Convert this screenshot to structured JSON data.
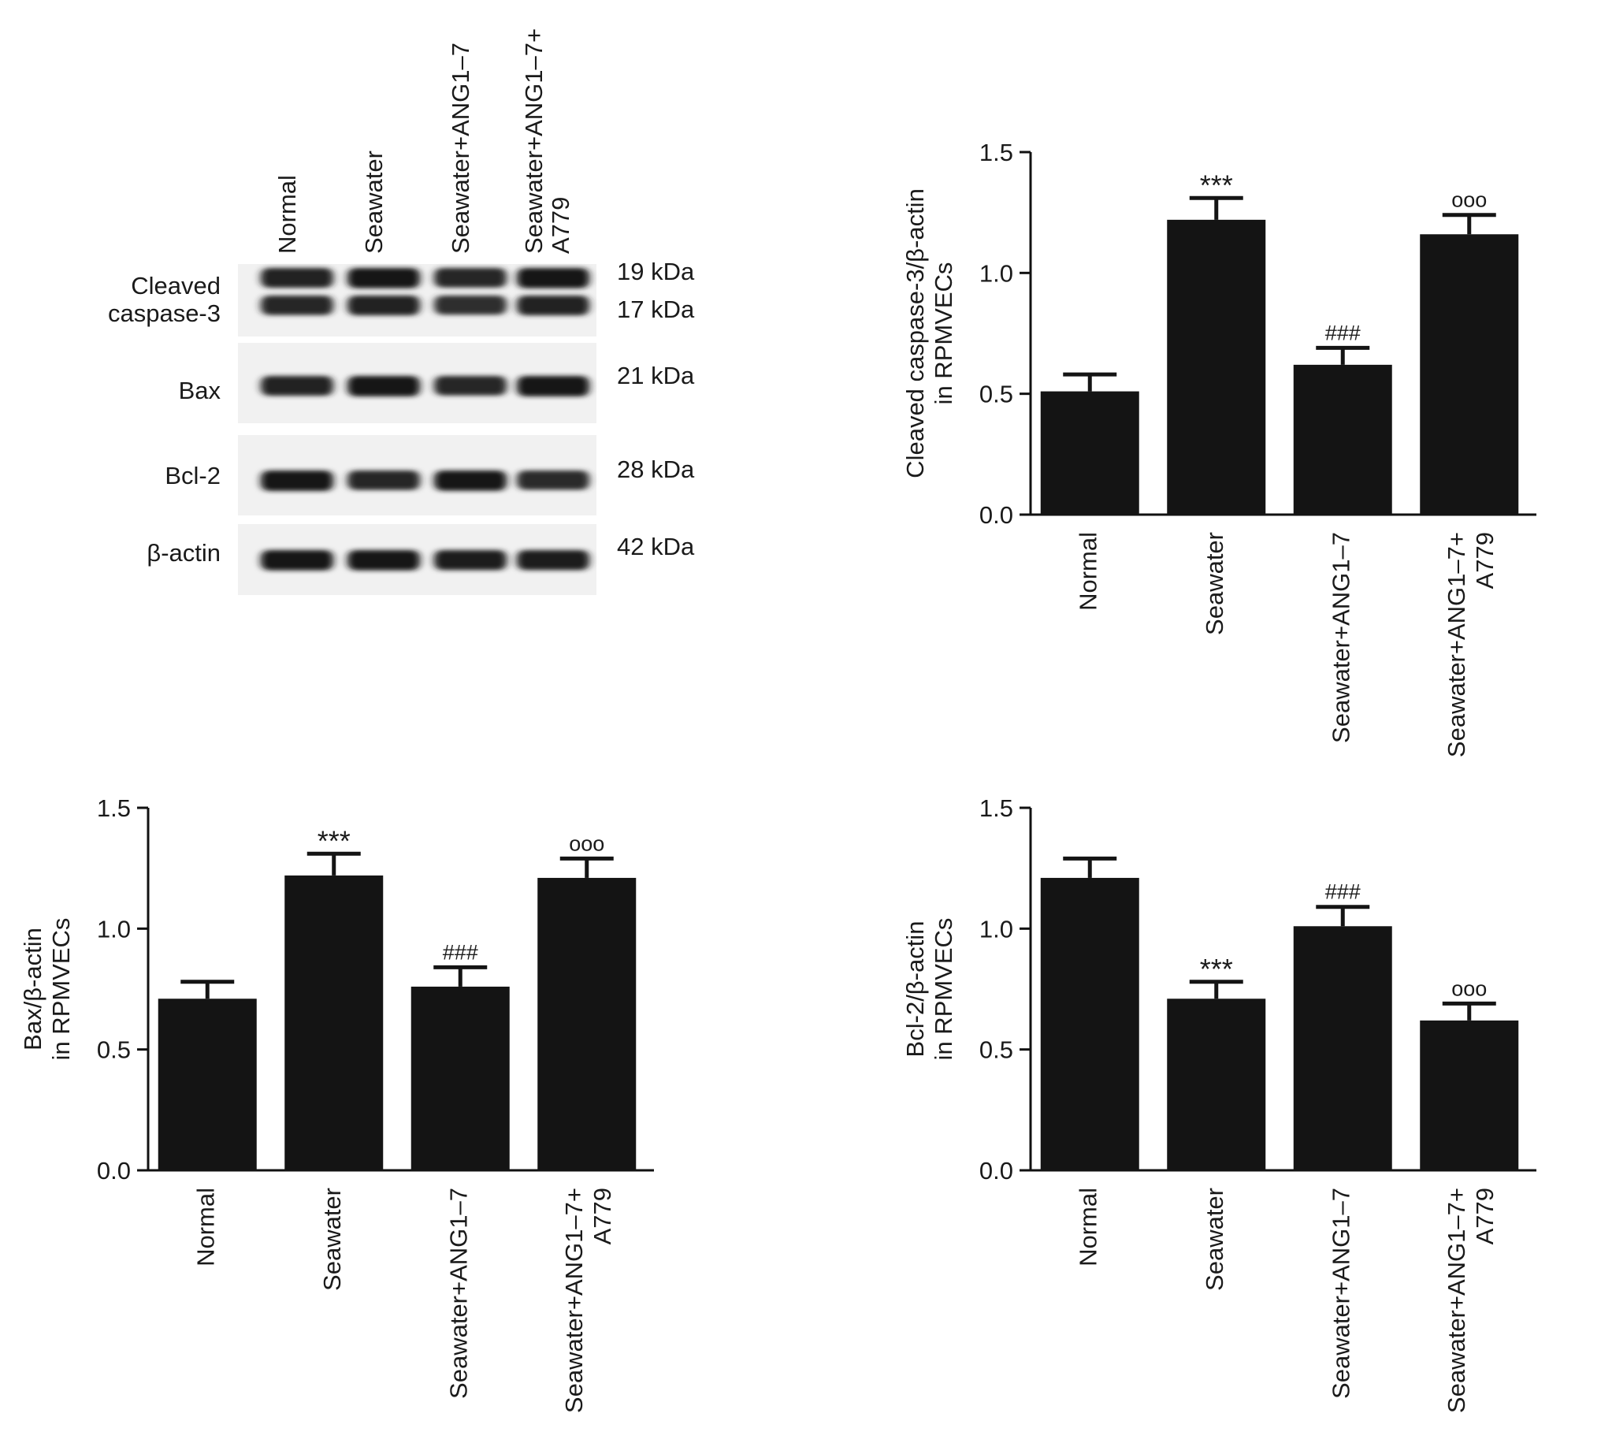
{
  "western_blot": {
    "lanes": [
      "Normal",
      "Seawater",
      "Seawater+ANG1–7",
      "Seawater+ANG1–7+",
      "A779"
    ],
    "rows": [
      {
        "label_lines": [
          "Cleaved",
          "caspase-3"
        ],
        "sizes": [
          "19 kDa",
          "17 kDa"
        ]
      },
      {
        "label_lines": [
          "Bax"
        ],
        "sizes": [
          "21 kDa"
        ]
      },
      {
        "label_lines": [
          "Bcl-2"
        ],
        "sizes": [
          "28 kDa"
        ]
      },
      {
        "label_lines": [
          "β-actin"
        ],
        "sizes": [
          "42 kDa"
        ]
      }
    ],
    "band_intensity": {
      "cleaved_caspase3_19": [
        0.85,
        0.95,
        0.8,
        0.95
      ],
      "cleaved_caspase3_17": [
        0.8,
        0.85,
        0.7,
        0.85
      ],
      "bax": [
        0.85,
        1.0,
        0.8,
        1.0
      ],
      "bcl2": [
        1.0,
        0.8,
        0.95,
        0.75
      ],
      "beta_actin": [
        0.95,
        0.95,
        0.9,
        0.9
      ]
    }
  },
  "chart_data": [
    {
      "type": "bar",
      "categories": [
        "Normal",
        "Seawater",
        "Seawater+ANG1–7",
        "Seawater+ANG1–7+\nA779"
      ],
      "values": [
        0.51,
        1.22,
        0.62,
        1.16
      ],
      "errors": [
        0.07,
        0.09,
        0.07,
        0.08
      ],
      "annotations": [
        "",
        "***",
        "###",
        "ooo"
      ],
      "ylabel_lines": [
        "Cleaved caspase-3/β-actin",
        "in RPMVECs"
      ],
      "ylim": [
        0,
        1.5
      ],
      "yticks": [
        "0.0",
        "0.5",
        "1.0",
        "1.5"
      ],
      "bar_color": "#141414"
    },
    {
      "type": "bar",
      "categories": [
        "Normal",
        "Seawater",
        "Seawater+ANG1–7",
        "Seawater+ANG1–7+\nA779"
      ],
      "values": [
        0.71,
        1.22,
        0.76,
        1.21
      ],
      "errors": [
        0.07,
        0.09,
        0.08,
        0.08
      ],
      "annotations": [
        "",
        "***",
        "###",
        "ooo"
      ],
      "ylabel_lines": [
        "Bax/β-actin",
        "in RPMVECs"
      ],
      "ylim": [
        0,
        1.5
      ],
      "yticks": [
        "0.0",
        "0.5",
        "1.0",
        "1.5"
      ],
      "bar_color": "#141414"
    },
    {
      "type": "bar",
      "categories": [
        "Normal",
        "Seawater",
        "Seawater+ANG1–7",
        "Seawater+ANG1–7+\nA779"
      ],
      "values": [
        1.21,
        0.71,
        1.01,
        0.62
      ],
      "errors": [
        0.08,
        0.07,
        0.08,
        0.07
      ],
      "annotations": [
        "",
        "***",
        "###",
        "ooo"
      ],
      "ylabel_lines": [
        "Bcl-2/β-actin",
        "in RPMVECs"
      ],
      "ylim": [
        0,
        1.5
      ],
      "yticks": [
        "0.0",
        "0.5",
        "1.0",
        "1.5"
      ],
      "bar_color": "#141414"
    }
  ]
}
